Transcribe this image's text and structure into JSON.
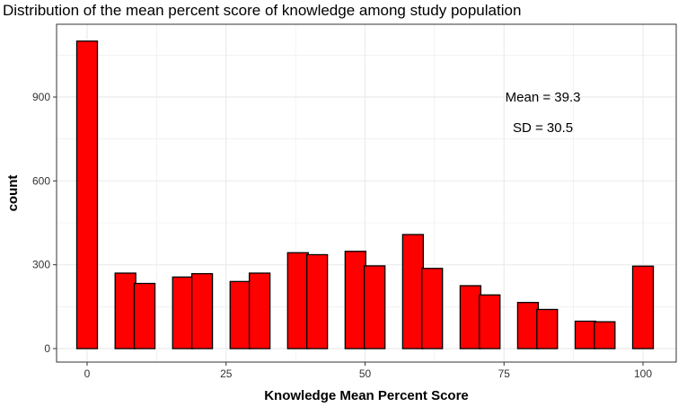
{
  "chart_data": {
    "type": "bar",
    "title": "Distribution of the mean percent score of knowledge among study population",
    "xlabel": "Knowledge Mean Percent Score",
    "ylabel": "count",
    "xlim": [
      -6.5,
      106.5
    ],
    "ylim": [
      -35,
      1125
    ],
    "x_ticks": [
      0,
      25,
      50,
      75,
      100
    ],
    "y_ticks": [
      0,
      300,
      600,
      900
    ],
    "bin_width": 3.75,
    "bins": [
      {
        "x": 0,
        "count": 1100
      },
      {
        "x": 3.75,
        "count": 0
      },
      {
        "x": 7.5,
        "count": 270
      },
      {
        "x": 11.25,
        "count": 233
      },
      {
        "x": 15,
        "count": 0
      },
      {
        "x": 18.75,
        "count": 256
      },
      {
        "x": 22.5,
        "count": 268
      },
      {
        "x": 26.25,
        "count": 0
      },
      {
        "x": 30,
        "count": 240
      },
      {
        "x": 33.75,
        "count": 270
      },
      {
        "x": 37.5,
        "count": 0
      },
      {
        "x": 41.25,
        "count": 343
      },
      {
        "x": 45,
        "count": 336
      },
      {
        "x": 48.75,
        "count": 0
      },
      {
        "x": 52.5,
        "count": 348
      },
      {
        "x": 56.25,
        "count": 296
      },
      {
        "x": 60,
        "count": 0
      },
      {
        "x": 63.75,
        "count": 408
      },
      {
        "x": 67.5,
        "count": 287
      },
      {
        "x": 71.25,
        "count": 0
      },
      {
        "x": 75,
        "count": 225
      },
      {
        "x": 78.75,
        "count": 192
      },
      {
        "x": 82.5,
        "count": 0
      },
      {
        "x": 86.25,
        "count": 165
      },
      {
        "x": 90,
        "count": 140
      },
      {
        "x": 93.75,
        "count": 0
      },
      {
        "x": 97.5,
        "count": 98
      },
      {
        "x": 101.25,
        "count": 96
      },
      {
        "x": 105,
        "count": 0
      },
      {
        "x": 108.75,
        "count": 295
      }
    ],
    "annotations": [
      {
        "text": "Mean = 39.3",
        "x": 82,
        "y": 900
      },
      {
        "text": "SD = 30.5",
        "x": 82,
        "y": 790
      }
    ],
    "colors": {
      "bar_fill": "#ff0000",
      "bar_stroke": "#000000",
      "grid": "#ebebeb",
      "panel_border": "#333333"
    },
    "grid": true,
    "legend": "none"
  }
}
